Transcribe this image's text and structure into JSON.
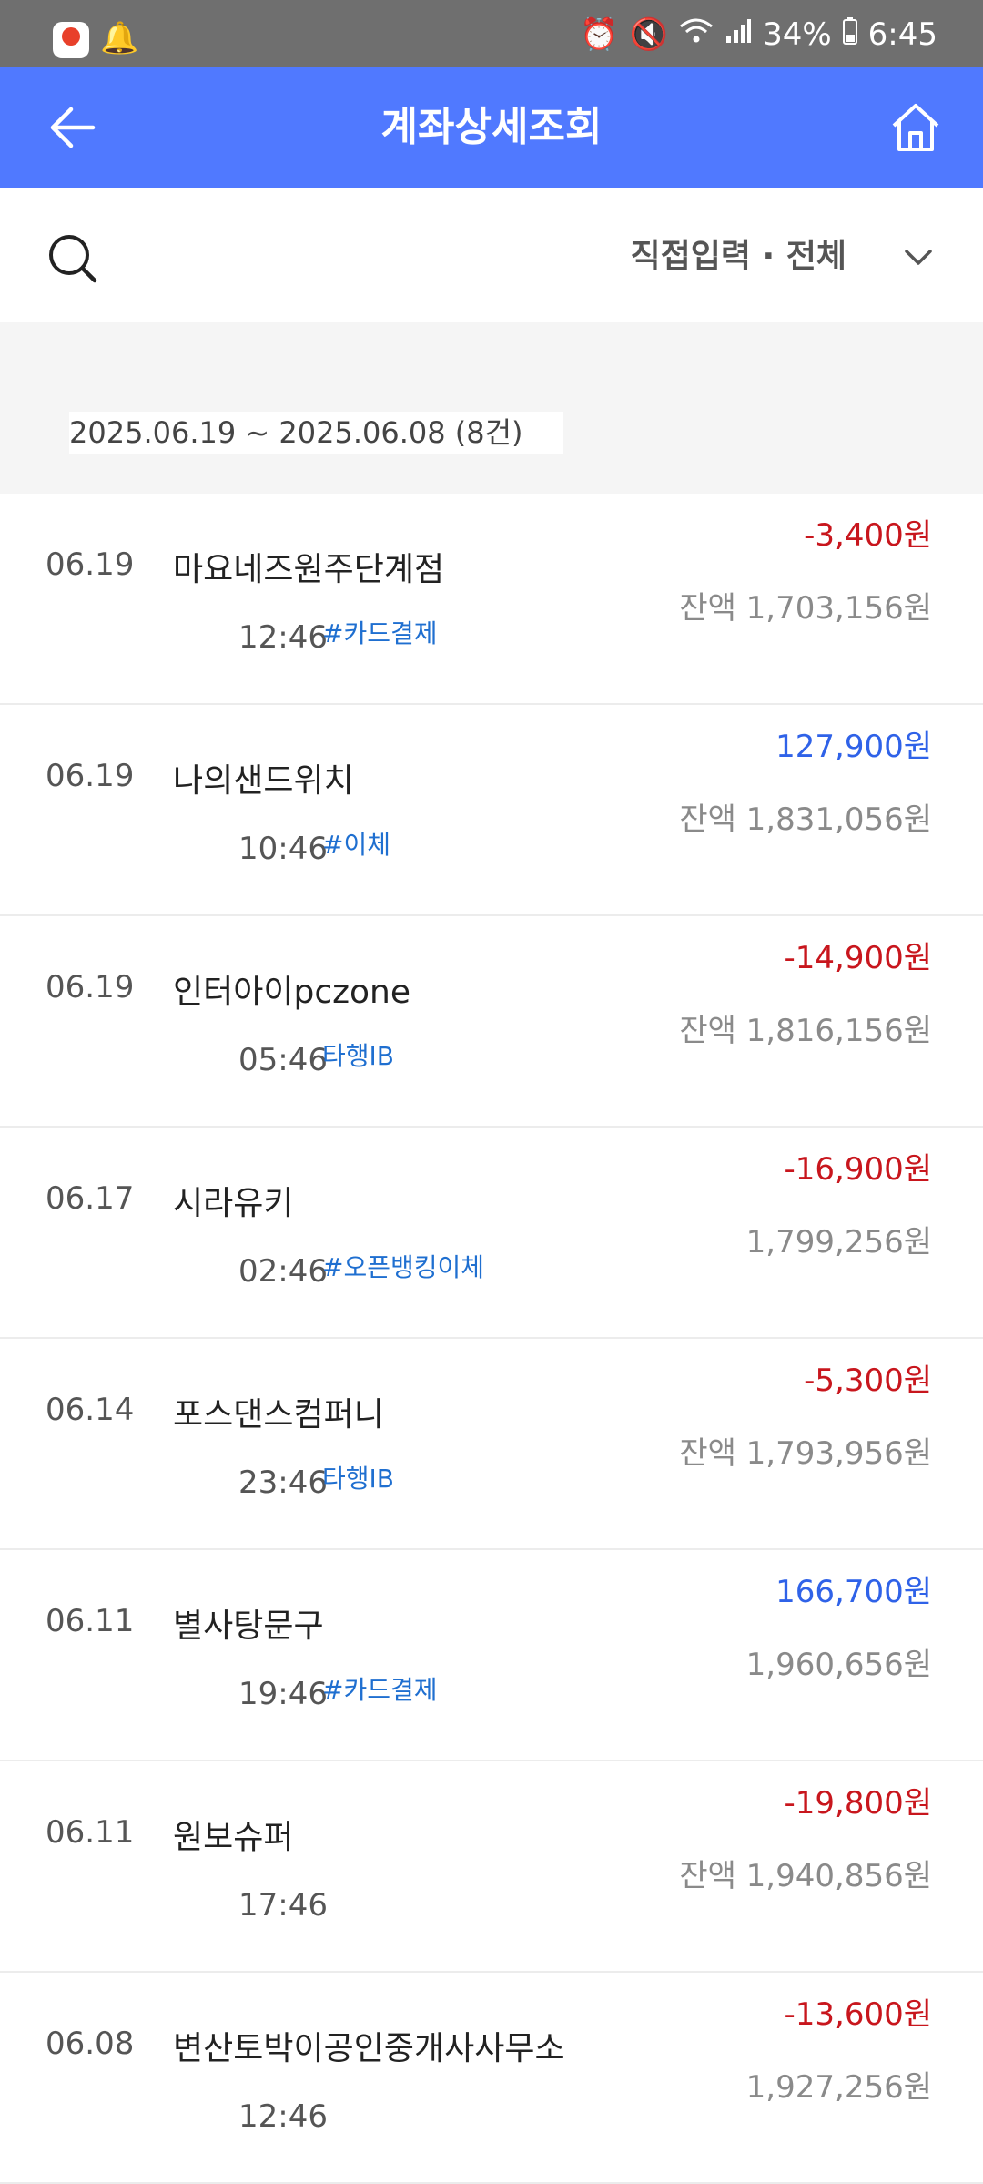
{
  "status_bar": {
    "battery": "34%",
    "time": "6:45",
    "icons": [
      "alarm-icon",
      "mute-icon",
      "wifi-icon",
      "signal-icon",
      "battery-icon"
    ]
  },
  "header": {
    "title": "계좌상세조회"
  },
  "filter": {
    "label": "직접입력 · 전체"
  },
  "date_range": {
    "text": "2025.06.19 ~ 2025.06.08 (8건)"
  },
  "transactions": [
    {
      "date": "06.19",
      "name": "마요네즈원주단계점",
      "time": "12:46",
      "tag": "#카드결제",
      "amount": "-3,400원",
      "type": "neg",
      "balance": "잔액 1,703,156원"
    },
    {
      "date": "06.19",
      "name": "나의샌드위치",
      "time": "10:46",
      "tag": "#이체",
      "amount": "127,900원",
      "type": "pos",
      "balance": "잔액 1,831,056원"
    },
    {
      "date": "06.19",
      "name": "인터아이pczone",
      "time": "05:46",
      "tag": "타행IB",
      "amount": "-14,900원",
      "type": "neg",
      "balance": "잔액 1,816,156원"
    },
    {
      "date": "06.17",
      "name": "시라유키",
      "time": "02:46",
      "tag": "#오픈뱅킹이체",
      "amount": "-16,900원",
      "type": "neg",
      "balance": "1,799,256원"
    },
    {
      "date": "06.14",
      "name": "포스댄스컴퍼니",
      "time": "23:46",
      "tag": "타행IB",
      "amount": "-5,300원",
      "type": "neg",
      "balance": "잔액 1,793,956원"
    },
    {
      "date": "06.11",
      "name": "별사탕문구",
      "time": "19:46",
      "tag": "#카드결제",
      "amount": "166,700원",
      "type": "pos",
      "balance": "1,960,656원"
    },
    {
      "date": "06.11",
      "name": "원보슈퍼",
      "time": "17:46",
      "tag": "",
      "amount": "-19,800원",
      "type": "neg",
      "balance": "잔액 1,940,856원"
    },
    {
      "date": "06.08",
      "name": "변산토박이공인중개사사무소",
      "time": "12:46",
      "tag": "",
      "amount": "-13,600원",
      "type": "neg",
      "balance": "1,927,256원"
    }
  ]
}
